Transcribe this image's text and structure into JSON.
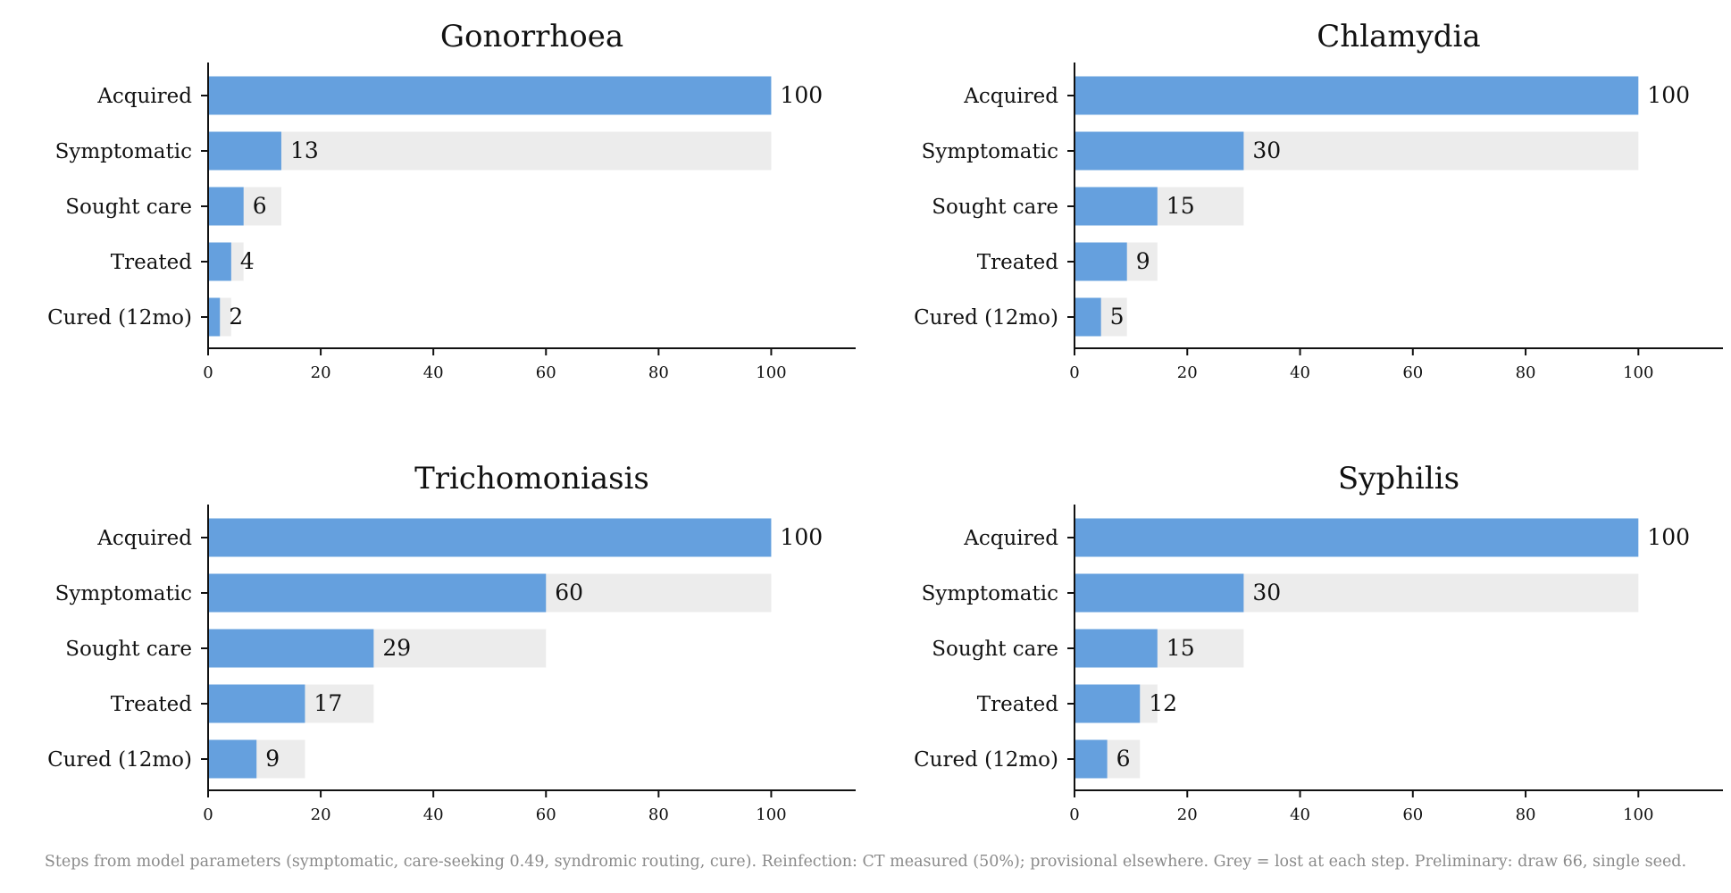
{
  "chart_data": [
    {
      "type": "bar",
      "title": "Gonorrhoea",
      "categories": [
        "Acquired",
        "Symptomatic",
        "Sought care",
        "Treated",
        "Cured (12mo)"
      ],
      "values": [
        100,
        13,
        6.3,
        4.1,
        2.1
      ],
      "value_labels": [
        "100",
        "13",
        "6",
        "4",
        "2"
      ],
      "lost_reference": [
        100,
        100,
        13,
        6.3,
        4.1
      ],
      "xlim": [
        0,
        115
      ],
      "xticks": [
        0,
        20,
        40,
        60,
        80,
        100
      ],
      "orientation": "horizontal",
      "grid": false
    },
    {
      "type": "bar",
      "title": "Chlamydia",
      "categories": [
        "Acquired",
        "Symptomatic",
        "Sought care",
        "Treated",
        "Cured (12mo)"
      ],
      "values": [
        100,
        30,
        14.7,
        9.3,
        4.7
      ],
      "value_labels": [
        "100",
        "30",
        "15",
        "9",
        "5"
      ],
      "lost_reference": [
        100,
        100,
        30,
        14.7,
        9.3
      ],
      "xlim": [
        0,
        115
      ],
      "xticks": [
        0,
        20,
        40,
        60,
        80,
        100
      ],
      "orientation": "horizontal",
      "grid": false
    },
    {
      "type": "bar",
      "title": "Trichomoniasis",
      "categories": [
        "Acquired",
        "Symptomatic",
        "Sought care",
        "Treated",
        "Cured (12mo)"
      ],
      "values": [
        100,
        60,
        29.4,
        17.2,
        8.6
      ],
      "value_labels": [
        "100",
        "60",
        "29",
        "17",
        "9"
      ],
      "lost_reference": [
        100,
        100,
        60,
        29.4,
        17.2
      ],
      "xlim": [
        0,
        115
      ],
      "xticks": [
        0,
        20,
        40,
        60,
        80,
        100
      ],
      "orientation": "horizontal",
      "grid": false
    },
    {
      "type": "bar",
      "title": "Syphilis",
      "categories": [
        "Acquired",
        "Symptomatic",
        "Sought care",
        "Treated",
        "Cured (12mo)"
      ],
      "values": [
        100,
        30,
        14.7,
        11.6,
        5.8
      ],
      "value_labels": [
        "100",
        "30",
        "15",
        "12",
        "6"
      ],
      "lost_reference": [
        100,
        100,
        30,
        14.7,
        11.6
      ],
      "xlim": [
        0,
        115
      ],
      "xticks": [
        0,
        20,
        40,
        60,
        80,
        100
      ],
      "orientation": "horizontal",
      "grid": false
    }
  ],
  "colors": {
    "bar": "#65a0de",
    "lost": "#ececec",
    "axis": "#111111",
    "caption": "#8a8a8a"
  },
  "caption": "Steps from model parameters (symptomatic, care-seeking 0.49, syndromic routing, cure). Reinfection: CT measured (50%); provisional elsewhere. Grey = lost at each step. Preliminary: draw 66, single seed."
}
